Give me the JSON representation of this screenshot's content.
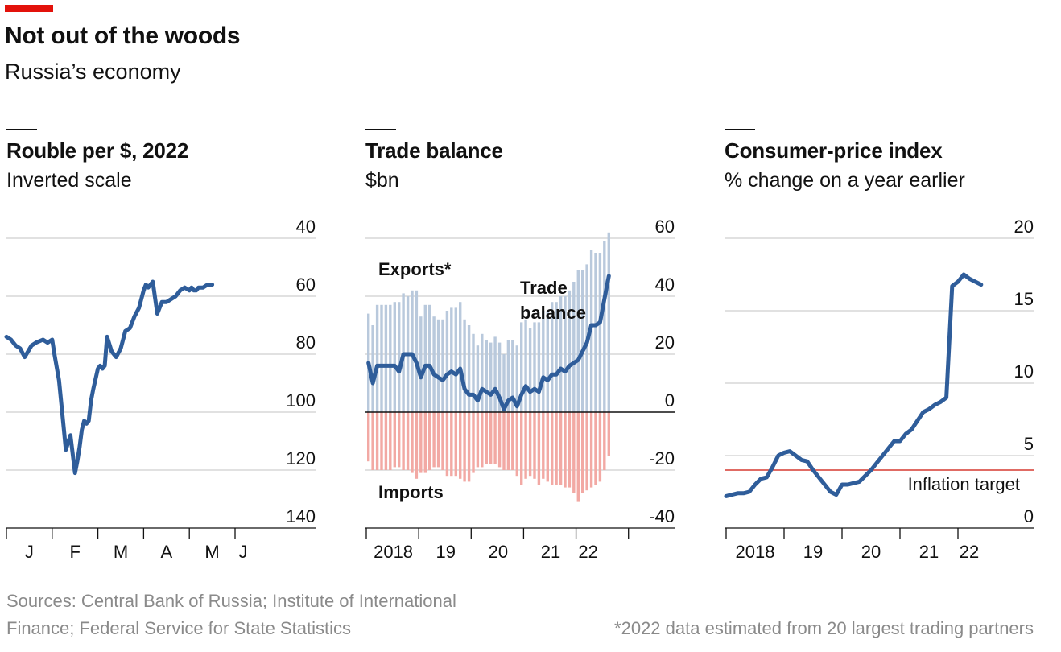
{
  "header": {
    "title": "Not out of the woods",
    "subtitle": "Russia’s economy",
    "accent_color": "#e3120b"
  },
  "panels": [
    {
      "title": "Rouble per $, 2022",
      "subtitle": "Inverted scale"
    },
    {
      "title": "Trade balance",
      "subtitle": "$bn"
    },
    {
      "title": "Consumer-price index",
      "subtitle": "% change on a year earlier"
    }
  ],
  "footer": {
    "sources_line1": "Sources: Central Bank of Russia; Institute of International",
    "sources_line2": "Finance; Federal Service for State Statistics",
    "note": "*2022 data estimated from 20 largest trading partners"
  },
  "colors": {
    "line": "#2f5d9a",
    "exports": "#b9c9dc",
    "imports": "#f2a9a4",
    "exports_label": "#2f5d9a",
    "imports_label": "#d63a30",
    "target": "#d63a30",
    "grid": "#cfcfcf"
  },
  "chart_data": [
    {
      "type": "line",
      "title": "Rouble per $, 2022",
      "subtitle": "Inverted scale",
      "y_inverted": true,
      "ylim": [
        40,
        140
      ],
      "yticks": [
        40,
        60,
        80,
        100,
        120,
        140
      ],
      "xticks": [
        "J",
        "F",
        "M",
        "A",
        "M",
        "J"
      ],
      "x_months": [
        1,
        2,
        3,
        4,
        5,
        6
      ],
      "series": [
        {
          "x": [
            1.0,
            1.1,
            1.2,
            1.3,
            1.4,
            1.55,
            1.65,
            1.8,
            1.9,
            2.0,
            2.05,
            2.15,
            2.25,
            2.3,
            2.4,
            2.5,
            2.55,
            2.6,
            2.65,
            2.7,
            2.75,
            2.8,
            2.85,
            2.9,
            3.0,
            3.05,
            3.1,
            3.15,
            3.2,
            3.3,
            3.4,
            3.5,
            3.6,
            3.7,
            3.8,
            3.9,
            4.0,
            4.05,
            4.1,
            4.2,
            4.3,
            4.4,
            4.5,
            4.6,
            4.7,
            4.8,
            4.9,
            5.0,
            5.05,
            5.1,
            5.15,
            5.2,
            5.25,
            5.3,
            5.4,
            5.5
          ],
          "values": [
            74,
            75,
            77,
            78,
            81,
            77,
            76,
            75,
            76,
            75,
            80,
            89,
            105,
            113,
            108,
            121,
            117,
            112,
            106,
            103,
            104,
            103,
            96,
            92,
            85,
            84,
            85,
            84,
            74,
            79,
            81,
            78,
            72,
            71,
            67,
            64,
            58,
            56,
            57,
            55,
            66,
            62,
            62,
            61,
            60,
            58,
            57,
            58,
            57,
            58,
            58,
            57,
            57,
            57,
            56,
            56
          ]
        }
      ]
    },
    {
      "type": "bar",
      "title": "Trade balance",
      "subtitle": "$bn",
      "ylim": [
        -40,
        60
      ],
      "yticks": [
        60,
        40,
        20,
        0,
        -20,
        -40
      ],
      "xticks": [
        "2018",
        "19",
        "20",
        "21",
        "22"
      ],
      "x_start": 2018,
      "series": [
        {
          "name": "Exports*",
          "values": [
            34,
            30,
            37,
            37,
            37,
            37,
            38,
            38,
            41,
            40,
            42,
            42,
            33,
            37,
            37,
            33,
            32,
            32,
            35,
            36,
            36,
            38,
            32,
            30,
            27,
            23,
            27,
            25,
            24,
            26,
            24,
            20,
            25,
            25,
            23,
            31,
            32,
            29,
            31,
            31,
            35,
            35,
            38,
            38,
            40,
            40,
            42,
            45,
            49,
            49,
            51,
            56,
            55,
            55,
            59,
            62
          ]
        },
        {
          "name": "Imports",
          "values": [
            -17,
            -20,
            -20,
            -20,
            -20,
            -20,
            -19,
            -19,
            -20,
            -20,
            -21,
            -23,
            -21,
            -21,
            -20,
            -19,
            -19,
            -20,
            -22,
            -22,
            -22,
            -23,
            -24,
            -24,
            -21,
            -19,
            -19,
            -18,
            -18,
            -18,
            -19,
            -20,
            -20,
            -20,
            -22,
            -25,
            -23,
            -22,
            -23,
            -25,
            -23,
            -24,
            -25,
            -25,
            -25,
            -26,
            -26,
            -28,
            -31,
            -28,
            -27,
            -26,
            -25,
            -24,
            -20,
            -15
          ]
        },
        {
          "name": "Trade balance",
          "values": [
            17,
            10,
            16,
            16,
            16,
            16,
            16,
            14,
            20,
            20,
            20,
            17,
            12,
            16,
            16,
            13,
            12,
            11,
            13,
            14,
            13,
            15,
            8,
            6,
            6,
            4,
            8,
            7,
            6,
            8,
            5,
            1,
            4,
            5,
            2,
            6,
            9,
            7,
            8,
            7,
            12,
            11,
            13,
            13,
            15,
            14,
            16,
            17,
            18,
            21,
            24,
            30,
            30,
            31,
            39,
            47
          ]
        }
      ],
      "labels": {
        "exports": "Exports*",
        "imports": "Imports",
        "balance_line1": "Trade",
        "balance_line2": "balance"
      }
    },
    {
      "type": "line",
      "title": "Consumer-price index",
      "subtitle": "% change on a year earlier",
      "ylim": [
        0,
        20
      ],
      "yticks": [
        20,
        15,
        10,
        5,
        0
      ],
      "xticks": [
        "2018",
        "19",
        "20",
        "21",
        "22"
      ],
      "target": {
        "value": 4,
        "label": "Inflation target"
      },
      "series": [
        {
          "x": [
            2018.0,
            2018.1,
            2018.2,
            2018.3,
            2018.4,
            2018.5,
            2018.6,
            2018.7,
            2018.8,
            2018.9,
            2019.0,
            2019.1,
            2019.2,
            2019.3,
            2019.4,
            2019.5,
            2019.6,
            2019.7,
            2019.8,
            2019.9,
            2020.0,
            2020.1,
            2020.2,
            2020.3,
            2020.4,
            2020.5,
            2020.6,
            2020.7,
            2020.8,
            2020.9,
            2021.0,
            2021.1,
            2021.2,
            2021.3,
            2021.4,
            2021.5,
            2021.6,
            2021.7,
            2021.8,
            2021.9,
            2022.0,
            2022.1,
            2022.2,
            2022.3,
            2022.4
          ],
          "values": [
            2.2,
            2.3,
            2.4,
            2.4,
            2.5,
            3.0,
            3.4,
            3.5,
            4.2,
            5.0,
            5.2,
            5.3,
            5.0,
            4.7,
            4.6,
            4.0,
            3.5,
            3.0,
            2.5,
            2.3,
            3.0,
            3.0,
            3.1,
            3.2,
            3.6,
            4.0,
            4.5,
            5.0,
            5.5,
            6.0,
            6.0,
            6.5,
            6.8,
            7.4,
            8.0,
            8.2,
            8.5,
            8.7,
            9.0,
            16.7,
            17.0,
            17.5,
            17.2,
            17.0,
            16.8
          ]
        }
      ]
    }
  ]
}
